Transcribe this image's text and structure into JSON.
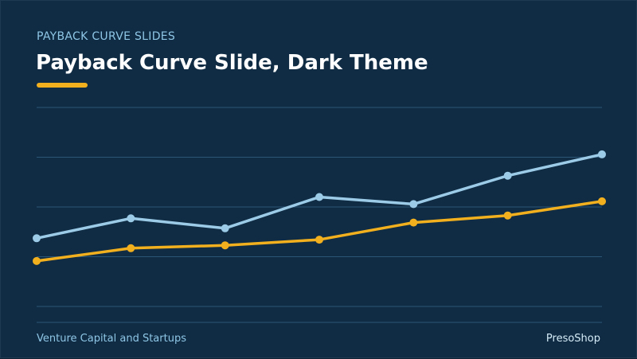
{
  "slide": {
    "eyebrow": "PAYBACK CURVE SLIDES",
    "title": "Payback Curve Slide, Dark Theme",
    "footer_left": "Venture Capital and Startups",
    "footer_right": "PresoShop"
  },
  "colors": {
    "background": "#0f2c44",
    "accent": "#f2b01e",
    "series_light": "#9ccbe8",
    "series_gold": "#f2b01e",
    "gridline": "#2c5676"
  },
  "chart_data": {
    "type": "line",
    "x": [
      1,
      2,
      3,
      4,
      5,
      6,
      7
    ],
    "series": [
      {
        "values": [
          2.4,
          3.1,
          2.75,
          3.85,
          3.6,
          4.6,
          5.35
        ]
      },
      {
        "values": [
          1.6,
          2.05,
          2.15,
          2.35,
          2.95,
          3.2,
          3.7
        ]
      }
    ],
    "ylim": [
      0,
      7
    ],
    "grid": true,
    "legend": "none"
  }
}
